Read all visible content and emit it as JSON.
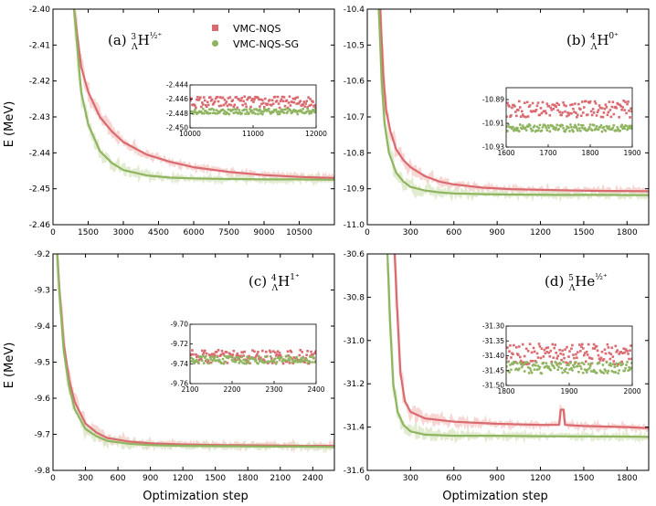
{
  "colors": {
    "nqs": "#d96a70",
    "sg": "#8fb560",
    "nqs_light": "#f5c8c4",
    "sg_light": "#d7e6c1"
  },
  "legend": {
    "items": [
      {
        "label": "VMC-NQS",
        "color": "#d96a70"
      },
      {
        "label": "VMC-NQS-SG",
        "color": "#8fb560"
      }
    ]
  },
  "axis_labels": {
    "y_top": "E (MeV)",
    "y_bottom": "E (MeV)",
    "x_left": "Optimization step",
    "x_right": "Optimization step"
  },
  "chart_data": [
    {
      "type": "line",
      "title": "(a) ³ΛH½⁺",
      "xlabel": "",
      "ylabel": "E (MeV)",
      "xlim": [
        0,
        12000
      ],
      "ylim": [
        -2.46,
        -2.4
      ],
      "xticks": [
        0,
        1500,
        3000,
        4500,
        6000,
        7500,
        9000,
        10500
      ],
      "yticks": [
        -2.46,
        -2.45,
        -2.44,
        -2.43,
        -2.42,
        -2.41,
        -2.4
      ],
      "ytick_labels": [
        "-2.46",
        "-2.45",
        "-2.44",
        "-2.43",
        "-2.42",
        "-2.41",
        "-2.40"
      ],
      "series": [
        {
          "name": "VMC-NQS",
          "x": [
            900,
            1200,
            1500,
            2000,
            2500,
            3000,
            4000,
            5000,
            6000,
            7500,
            9000,
            10500,
            12000
          ],
          "values": [
            -2.4,
            -2.416,
            -2.423,
            -2.43,
            -2.434,
            -2.437,
            -2.4405,
            -2.4425,
            -2.444,
            -2.4453,
            -2.4462,
            -2.4467,
            -2.447
          ]
        },
        {
          "name": "VMC-NQS-SG",
          "x": [
            900,
            1200,
            1500,
            2000,
            2500,
            3000,
            4000,
            5000,
            6000,
            7500,
            9000,
            10500,
            12000
          ],
          "values": [
            -2.4,
            -2.423,
            -2.432,
            -2.4395,
            -2.4428,
            -2.4448,
            -2.4463,
            -2.4469,
            -2.4471,
            -2.4473,
            -2.4474,
            -2.4474,
            -2.4475
          ]
        }
      ],
      "inset": {
        "xlim": [
          10000,
          12000
        ],
        "ylim": [
          -2.45,
          -2.444
        ],
        "xticks": [
          10000,
          11000,
          12000
        ],
        "yticks": [
          -2.45,
          -2.448,
          -2.446,
          -2.444
        ],
        "ytick_labels": [
          "-2.450",
          "-2.448",
          "-2.446",
          "-2.444"
        ],
        "nqs_mean": -2.4464,
        "nqs_spread": 0.0008,
        "sg_mean": -2.4477,
        "sg_spread": 0.0004
      }
    },
    {
      "type": "line",
      "title": "(b) ⁴ΛH⁰⁺",
      "xlabel": "",
      "ylabel": "",
      "xlim": [
        0,
        1950
      ],
      "ylim": [
        -11.0,
        -10.4
      ],
      "xticks": [
        0,
        300,
        600,
        900,
        1200,
        1500,
        1800
      ],
      "yticks": [
        -11.0,
        -10.9,
        -10.8,
        -10.7,
        -10.6,
        -10.5,
        -10.4
      ],
      "ytick_labels": [
        "-11.0",
        "-10.9",
        "-10.8",
        "-10.7",
        "-10.6",
        "-10.5",
        "-10.4"
      ],
      "series": [
        {
          "name": "VMC-NQS",
          "x": [
            90,
            110,
            130,
            160,
            200,
            250,
            300,
            400,
            500,
            600,
            800,
            1000,
            1300,
            1600,
            1950
          ],
          "values": [
            -10.4,
            -10.58,
            -10.68,
            -10.74,
            -10.79,
            -10.82,
            -10.84,
            -10.865,
            -10.88,
            -10.888,
            -10.897,
            -10.901,
            -10.904,
            -10.906,
            -10.907
          ]
        },
        {
          "name": "VMC-NQS-SG",
          "x": [
            80,
            100,
            120,
            150,
            200,
            250,
            300,
            400,
            500,
            600,
            800,
            1000,
            1300,
            1600,
            1950
          ],
          "values": [
            -10.4,
            -10.6,
            -10.72,
            -10.8,
            -10.855,
            -10.88,
            -10.895,
            -10.905,
            -10.91,
            -10.913,
            -10.915,
            -10.916,
            -10.917,
            -10.917,
            -10.918
          ]
        }
      ],
      "inset": {
        "xlim": [
          1600,
          1900
        ],
        "ylim": [
          -10.93,
          -10.88
        ],
        "xticks": [
          1600,
          1700,
          1800,
          1900
        ],
        "yticks": [
          -10.93,
          -10.91,
          -10.89
        ],
        "ytick_labels": [
          "-10.93",
          "-10.91",
          "-10.89"
        ],
        "nqs_mean": -10.898,
        "nqs_spread": 0.007,
        "sg_mean": -10.914,
        "sg_spread": 0.003
      }
    },
    {
      "type": "line",
      "title": "(c) ⁴ΛH¹⁺",
      "xlabel": "Optimization step",
      "ylabel": "E (MeV)",
      "xlim": [
        0,
        2600
      ],
      "ylim": [
        -9.8,
        -9.2
      ],
      "xticks": [
        0,
        300,
        600,
        900,
        1200,
        1500,
        1800,
        2100,
        2400
      ],
      "yticks": [
        -9.8,
        -9.7,
        -9.6,
        -9.5,
        -9.4,
        -9.3,
        -9.2
      ],
      "ytick_labels": [
        "-9.8",
        "-9.7",
        "-9.6",
        "-9.5",
        "-9.4",
        "-9.3",
        "-9.2"
      ],
      "series": [
        {
          "name": "VMC-NQS",
          "x": [
            40,
            60,
            100,
            150,
            200,
            300,
            400,
            500,
            700,
            900,
            1200,
            1600,
            2000,
            2300,
            2600
          ],
          "values": [
            -9.2,
            -9.3,
            -9.45,
            -9.55,
            -9.61,
            -9.67,
            -9.695,
            -9.71,
            -9.72,
            -9.725,
            -9.728,
            -9.73,
            -9.731,
            -9.732,
            -9.732
          ]
        },
        {
          "name": "VMC-NQS-SG",
          "x": [
            40,
            60,
            100,
            150,
            200,
            300,
            400,
            500,
            700,
            900,
            1200,
            1600,
            2000,
            2300,
            2600
          ],
          "values": [
            -9.2,
            -9.31,
            -9.47,
            -9.57,
            -9.63,
            -9.685,
            -9.705,
            -9.718,
            -9.726,
            -9.73,
            -9.732,
            -9.733,
            -9.734,
            -9.734,
            -9.735
          ]
        }
      ],
      "inset": {
        "xlim": [
          2100,
          2400
        ],
        "ylim": [
          -9.76,
          -9.7
        ],
        "xticks": [
          2100,
          2200,
          2300,
          2400
        ],
        "yticks": [
          -9.76,
          -9.74,
          -9.72,
          -9.7
        ],
        "ytick_labels": [
          "-9.76",
          "-9.74",
          "-9.72",
          "-9.70"
        ],
        "nqs_mean": -9.733,
        "nqs_spread": 0.007,
        "sg_mean": -9.736,
        "sg_spread": 0.004
      }
    },
    {
      "type": "line",
      "title": "(d) ⁵ΛHe½⁺",
      "xlabel": "Optimization step",
      "ylabel": "",
      "xlim": [
        0,
        1950
      ],
      "ylim": [
        -31.6,
        -30.6
      ],
      "xticks": [
        0,
        300,
        600,
        900,
        1200,
        1500,
        1800
      ],
      "yticks": [
        -31.6,
        -31.4,
        -31.2,
        -31.0,
        -30.8,
        -30.6
      ],
      "ytick_labels": [
        "-31.6",
        "-31.4",
        "-31.2",
        "-31.0",
        "-30.8",
        "-30.6"
      ],
      "series": [
        {
          "name": "VMC-NQS",
          "x": [
            190,
            210,
            230,
            260,
            300,
            400,
            600,
            900,
            1200,
            1330,
            1340,
            1360,
            1370,
            1500,
            1800,
            1950
          ],
          "values": [
            -30.6,
            -30.9,
            -31.15,
            -31.28,
            -31.33,
            -31.36,
            -31.375,
            -31.385,
            -31.39,
            -31.39,
            -31.32,
            -31.32,
            -31.39,
            -31.395,
            -31.4,
            -31.405
          ]
        },
        {
          "name": "VMC-NQS-SG",
          "x": [
            140,
            160,
            180,
            210,
            250,
            300,
            400,
            600,
            900,
            1200,
            1500,
            1800,
            1950
          ],
          "values": [
            -30.6,
            -30.95,
            -31.2,
            -31.33,
            -31.39,
            -31.42,
            -31.435,
            -31.44,
            -31.44,
            -31.442,
            -31.443,
            -31.444,
            -31.445
          ]
        }
      ],
      "inset": {
        "xlim": [
          1800,
          2000
        ],
        "ylim": [
          -31.5,
          -31.3
        ],
        "xticks": [
          1800,
          1900,
          2000
        ],
        "yticks": [
          -31.5,
          -31.45,
          -31.4,
          -31.35,
          -31.3
        ],
        "ytick_labels": [
          "-31.50",
          "-31.45",
          "-31.40",
          "-31.35",
          "-31.30"
        ],
        "nqs_mean": -31.395,
        "nqs_spread": 0.035,
        "sg_mean": -31.44,
        "sg_spread": 0.02
      }
    }
  ]
}
